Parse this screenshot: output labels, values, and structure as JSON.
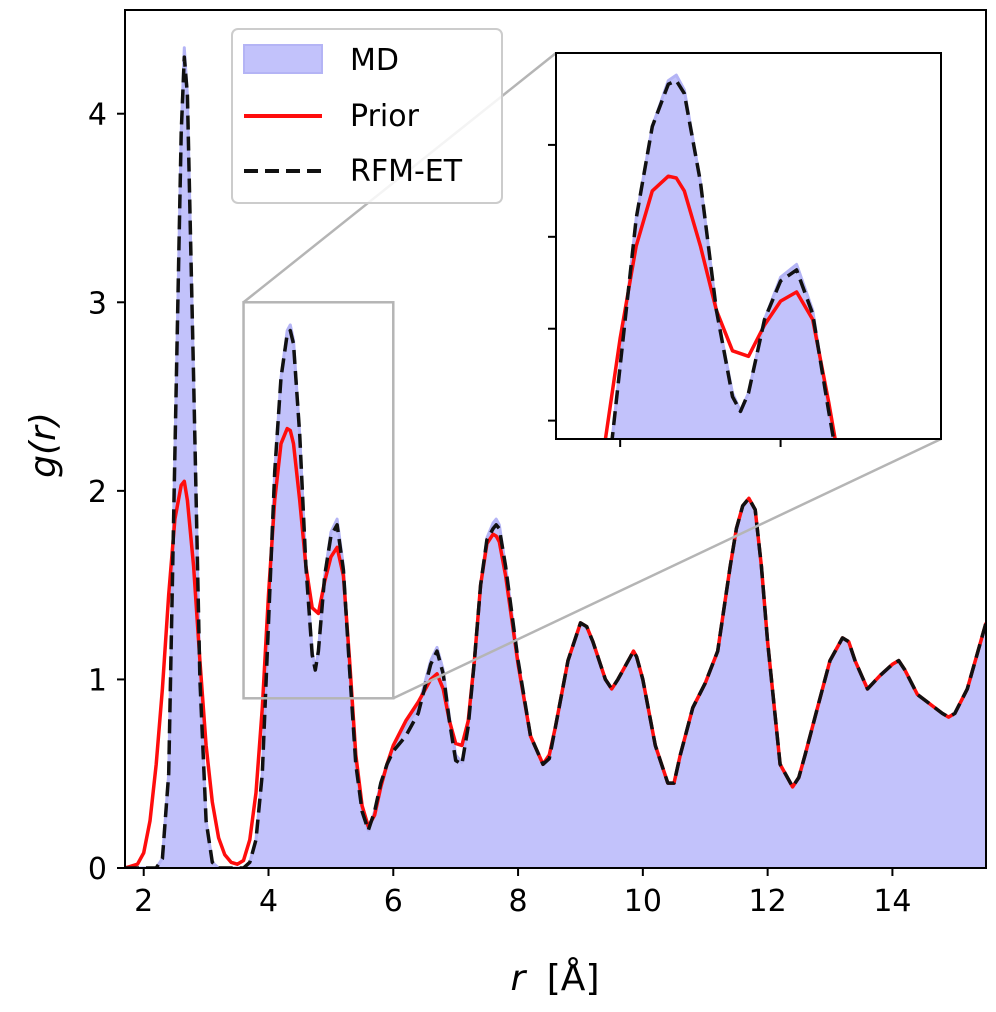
{
  "chart_data": {
    "type": "area",
    "title": "",
    "xlabel": "r",
    "xlabel_unit": "[Å]",
    "ylabel": "g(r)",
    "xlim": [
      1.7,
      15.5
    ],
    "ylim": [
      0,
      4.55
    ],
    "xticks": [
      2,
      4,
      6,
      8,
      10,
      12,
      14
    ],
    "yticks": [
      0,
      1,
      2,
      3,
      4
    ],
    "legend": {
      "placement": "top-left",
      "entries": [
        "MD",
        "Prior",
        "RFM-ET"
      ]
    },
    "colors": {
      "md_fill": "#c2c2fb",
      "md_edge": "#b4b4f5",
      "prior": "#ff0d0d",
      "rfm": "#111111",
      "zoom_box": "#b5b5b5"
    },
    "series": [
      {
        "name": "MD",
        "style": "filled-area",
        "x": [
          1.7,
          2.2,
          2.3,
          2.4,
          2.5,
          2.6,
          2.65,
          2.7,
          2.8,
          2.9,
          3.0,
          3.1,
          3.2,
          3.3,
          3.5,
          3.6,
          3.7,
          3.8,
          3.9,
          4.0,
          4.1,
          4.2,
          4.3,
          4.35,
          4.4,
          4.5,
          4.6,
          4.7,
          4.75,
          4.8,
          4.9,
          5.0,
          5.1,
          5.2,
          5.3,
          5.4,
          5.5,
          5.6,
          5.7,
          5.8,
          5.9,
          6.0,
          6.2,
          6.4,
          6.6,
          6.7,
          6.8,
          6.9,
          7.0,
          7.1,
          7.2,
          7.3,
          7.4,
          7.5,
          7.6,
          7.65,
          7.7,
          7.8,
          8.0,
          8.2,
          8.4,
          8.5,
          8.6,
          8.8,
          9.0,
          9.1,
          9.2,
          9.4,
          9.5,
          9.6,
          9.8,
          9.85,
          9.9,
          10.0,
          10.2,
          10.4,
          10.5,
          10.6,
          10.8,
          11.0,
          11.2,
          11.4,
          11.5,
          11.6,
          11.7,
          11.8,
          11.9,
          12.0,
          12.2,
          12.4,
          12.5,
          12.6,
          12.8,
          13.0,
          13.2,
          13.3,
          13.4,
          13.6,
          13.8,
          14.0,
          14.1,
          14.2,
          14.4,
          14.6,
          14.8,
          14.9,
          15.0,
          15.2,
          15.5
        ],
        "values": [
          0,
          0,
          0.05,
          0.5,
          2.2,
          3.9,
          4.35,
          4.1,
          2.6,
          1.0,
          0.25,
          0.03,
          0,
          0,
          0,
          0,
          0.03,
          0.15,
          0.5,
          1.3,
          2.1,
          2.6,
          2.85,
          2.88,
          2.8,
          2.3,
          1.6,
          1.15,
          1.05,
          1.15,
          1.55,
          1.78,
          1.85,
          1.6,
          1.05,
          0.55,
          0.3,
          0.2,
          0.3,
          0.45,
          0.55,
          0.65,
          0.75,
          0.85,
          1.1,
          1.17,
          1.05,
          0.8,
          0.6,
          0.56,
          0.75,
          1.1,
          1.5,
          1.75,
          1.83,
          1.85,
          1.82,
          1.6,
          1.1,
          0.7,
          0.55,
          0.6,
          0.75,
          1.1,
          1.3,
          1.28,
          1.2,
          1.0,
          0.95,
          1.0,
          1.12,
          1.15,
          1.12,
          1.0,
          0.65,
          0.45,
          0.45,
          0.6,
          0.85,
          0.98,
          1.15,
          1.6,
          1.8,
          1.92,
          1.96,
          1.9,
          1.6,
          1.2,
          0.55,
          0.43,
          0.48,
          0.6,
          0.85,
          1.1,
          1.22,
          1.2,
          1.1,
          0.95,
          1.02,
          1.08,
          1.1,
          1.05,
          0.92,
          0.87,
          0.82,
          0.8,
          0.82,
          0.95,
          1.3
        ]
      },
      {
        "name": "Prior",
        "style": "solid",
        "x": [
          1.7,
          1.9,
          2.0,
          2.1,
          2.2,
          2.3,
          2.4,
          2.5,
          2.6,
          2.65,
          2.7,
          2.8,
          2.9,
          3.0,
          3.1,
          3.2,
          3.3,
          3.4,
          3.5,
          3.6,
          3.7,
          3.8,
          3.9,
          4.0,
          4.1,
          4.2,
          4.3,
          4.35,
          4.4,
          4.5,
          4.6,
          4.7,
          4.8,
          4.9,
          5.0,
          5.1,
          5.2,
          5.3,
          5.4,
          5.5,
          5.6,
          5.7,
          5.8,
          5.9,
          6.0,
          6.2,
          6.4,
          6.6,
          6.7,
          6.8,
          6.9,
          7.0,
          7.1,
          7.2,
          7.3,
          7.4,
          7.5,
          7.6,
          7.65,
          7.7,
          7.8,
          8.0,
          8.2,
          8.4,
          8.5,
          8.6,
          8.8,
          9.0,
          9.1,
          9.2,
          9.4,
          9.5,
          9.6,
          9.8,
          9.85,
          9.9,
          10.0,
          10.2,
          10.4,
          10.5,
          10.6,
          10.8,
          11.0,
          11.2,
          11.4,
          11.5,
          11.6,
          11.7,
          11.8,
          11.9,
          12.0,
          12.2,
          12.4,
          12.5,
          12.6,
          12.8,
          13.0,
          13.2,
          13.3,
          13.4,
          13.6,
          13.8,
          14.0,
          14.1,
          14.2,
          14.4,
          14.6,
          14.8,
          14.9,
          15.0,
          15.2,
          15.5
        ],
        "values": [
          0,
          0.02,
          0.08,
          0.25,
          0.55,
          0.95,
          1.45,
          1.85,
          2.03,
          2.05,
          1.95,
          1.6,
          1.1,
          0.65,
          0.35,
          0.16,
          0.07,
          0.03,
          0.02,
          0.04,
          0.15,
          0.4,
          0.85,
          1.45,
          1.95,
          2.25,
          2.33,
          2.32,
          2.25,
          1.95,
          1.6,
          1.38,
          1.35,
          1.52,
          1.65,
          1.7,
          1.55,
          1.1,
          0.6,
          0.33,
          0.22,
          0.28,
          0.43,
          0.55,
          0.65,
          0.78,
          0.88,
          1.0,
          1.03,
          0.95,
          0.78,
          0.66,
          0.65,
          0.78,
          1.1,
          1.5,
          1.72,
          1.77,
          1.76,
          1.73,
          1.55,
          1.08,
          0.7,
          0.55,
          0.6,
          0.75,
          1.1,
          1.3,
          1.28,
          1.2,
          1.0,
          0.95,
          1.0,
          1.12,
          1.15,
          1.12,
          1.0,
          0.65,
          0.45,
          0.45,
          0.6,
          0.85,
          0.98,
          1.15,
          1.6,
          1.8,
          1.92,
          1.96,
          1.9,
          1.6,
          1.2,
          0.55,
          0.43,
          0.48,
          0.6,
          0.85,
          1.1,
          1.22,
          1.2,
          1.1,
          0.95,
          1.02,
          1.08,
          1.1,
          1.05,
          0.92,
          0.87,
          0.82,
          0.8,
          0.82,
          0.95,
          1.3
        ]
      },
      {
        "name": "RFM-ET",
        "style": "dashed",
        "x": [
          1.7,
          2.2,
          2.3,
          2.4,
          2.5,
          2.6,
          2.65,
          2.7,
          2.8,
          2.9,
          3.0,
          3.1,
          3.2,
          3.3,
          3.5,
          3.6,
          3.7,
          3.8,
          3.9,
          4.0,
          4.1,
          4.2,
          4.3,
          4.35,
          4.4,
          4.5,
          4.6,
          4.7,
          4.75,
          4.8,
          4.9,
          5.0,
          5.1,
          5.2,
          5.3,
          5.4,
          5.5,
          5.6,
          5.7,
          5.8,
          5.9,
          6.0,
          6.2,
          6.4,
          6.6,
          6.7,
          6.8,
          6.9,
          7.0,
          7.1,
          7.2,
          7.3,
          7.4,
          7.5,
          7.6,
          7.65,
          7.7,
          7.8,
          8.0,
          8.2,
          8.4,
          8.5,
          8.6,
          8.8,
          9.0,
          9.1,
          9.2,
          9.4,
          9.5,
          9.6,
          9.8,
          9.85,
          9.9,
          10.0,
          10.2,
          10.4,
          10.5,
          10.6,
          10.8,
          11.0,
          11.2,
          11.4,
          11.5,
          11.6,
          11.7,
          11.8,
          11.9,
          12.0,
          12.2,
          12.4,
          12.5,
          12.6,
          12.8,
          13.0,
          13.2,
          13.3,
          13.4,
          13.6,
          13.8,
          14.0,
          14.1,
          14.2,
          14.4,
          14.6,
          14.8,
          14.9,
          15.0,
          15.2,
          15.5
        ],
        "values": [
          0,
          0,
          0.05,
          0.5,
          2.2,
          3.9,
          4.3,
          4.1,
          2.6,
          1.0,
          0.25,
          0.03,
          0,
          0,
          0,
          0,
          0.03,
          0.15,
          0.5,
          1.3,
          2.1,
          2.6,
          2.83,
          2.85,
          2.78,
          2.3,
          1.6,
          1.13,
          1.05,
          1.15,
          1.55,
          1.76,
          1.82,
          1.58,
          1.05,
          0.55,
          0.3,
          0.2,
          0.3,
          0.45,
          0.55,
          0.62,
          0.7,
          0.82,
          1.08,
          1.15,
          1.03,
          0.78,
          0.57,
          0.55,
          0.75,
          1.1,
          1.5,
          1.74,
          1.8,
          1.82,
          1.8,
          1.6,
          1.1,
          0.7,
          0.55,
          0.58,
          0.75,
          1.1,
          1.3,
          1.28,
          1.2,
          1.0,
          0.95,
          1.0,
          1.12,
          1.15,
          1.12,
          1.0,
          0.65,
          0.45,
          0.45,
          0.6,
          0.85,
          0.98,
          1.15,
          1.6,
          1.8,
          1.92,
          1.96,
          1.9,
          1.6,
          1.2,
          0.55,
          0.43,
          0.48,
          0.6,
          0.85,
          1.1,
          1.22,
          1.2,
          1.1,
          0.95,
          1.02,
          1.08,
          1.1,
          1.05,
          0.92,
          0.87,
          0.82,
          0.8,
          0.82,
          0.95,
          1.3
        ]
      }
    ],
    "inset": {
      "zoom_region": {
        "xlim": [
          3.6,
          6.0
        ],
        "ylim": [
          0.9,
          3.0
        ]
      },
      "tick_labels": "hidden"
    }
  }
}
